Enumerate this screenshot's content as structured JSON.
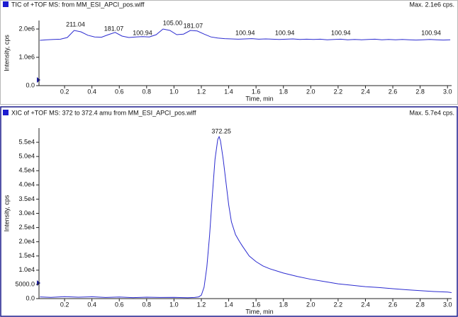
{
  "chart_data": [
    {
      "type": "line",
      "title": "TIC of +TOF MS: from MM_ESI_APCI_pos.wiff",
      "subtitle": "Max. 2.1e6 cps.",
      "x_label": "Time, min",
      "y_label": "Intensity, cps",
      "color": "#2b2bd0",
      "xlim": [
        0.013,
        3.03
      ],
      "ylim": [
        0,
        2300000
      ],
      "xticks": [
        0.2,
        0.4,
        0.6,
        0.8,
        {
          "value": 1,
          "label": "1.0"
        },
        1.2,
        1.4,
        1.6,
        1.8,
        {
          "value": 2,
          "label": "2.0"
        },
        2.2,
        2.4,
        2.6,
        2.8,
        {
          "value": 3,
          "label": "3.0"
        }
      ],
      "yticks": [
        {
          "value": 0,
          "label": "0.0"
        },
        {
          "value": 1000000,
          "label": "1.0e6"
        },
        {
          "value": 2000000,
          "label": "2.0e6"
        }
      ],
      "x": [
        0.02,
        0.07,
        0.12,
        0.17,
        0.22,
        0.27,
        0.32,
        0.37,
        0.42,
        0.47,
        0.52,
        0.57,
        0.62,
        0.67,
        0.72,
        0.77,
        0.82,
        0.87,
        0.92,
        0.97,
        1.02,
        1.07,
        1.12,
        1.17,
        1.22,
        1.27,
        1.32,
        1.37,
        1.42,
        1.47,
        1.52,
        1.57,
        1.62,
        1.67,
        1.72,
        1.77,
        1.82,
        1.87,
        1.92,
        1.97,
        2.02,
        2.07,
        2.12,
        2.17,
        2.22,
        2.27,
        2.32,
        2.37,
        2.42,
        2.47,
        2.52,
        2.57,
        2.62,
        2.67,
        2.72,
        2.77,
        2.82,
        2.87,
        2.92,
        2.97,
        3.02
      ],
      "values": [
        1600000,
        1620000,
        1630000,
        1640000,
        1700000,
        1950000,
        1900000,
        1780000,
        1720000,
        1710000,
        1800000,
        1880000,
        1750000,
        1700000,
        1720000,
        1730000,
        1720000,
        1800000,
        2000000,
        1950000,
        1800000,
        1820000,
        1950000,
        1930000,
        1820000,
        1720000,
        1680000,
        1660000,
        1650000,
        1640000,
        1650000,
        1660000,
        1640000,
        1650000,
        1640000,
        1630000,
        1640000,
        1650000,
        1630000,
        1640000,
        1630000,
        1640000,
        1620000,
        1630000,
        1640000,
        1620000,
        1630000,
        1620000,
        1630000,
        1640000,
        1620000,
        1630000,
        1620000,
        1630000,
        1620000,
        1610000,
        1620000,
        1630000,
        1620000,
        1610000,
        1620000
      ],
      "annotations": [
        {
          "x": 0.28,
          "y": 2150000,
          "text": "211.04"
        },
        {
          "x": 0.56,
          "y": 2000000,
          "text": "181.07"
        },
        {
          "x": 0.77,
          "y": 1850000,
          "text": "100.94"
        },
        {
          "x": 0.99,
          "y": 2200000,
          "text": "105.00"
        },
        {
          "x": 1.14,
          "y": 2100000,
          "text": "181.07"
        },
        {
          "x": 1.52,
          "y": 1850000,
          "text": "100.94"
        },
        {
          "x": 1.81,
          "y": 1850000,
          "text": "100.94"
        },
        {
          "x": 2.22,
          "y": 1850000,
          "text": "100.94"
        },
        {
          "x": 2.88,
          "y": 1850000,
          "text": "100.94"
        }
      ]
    },
    {
      "type": "line",
      "title": "XIC of +TOF MS: 372 to 372.4 amu from MM_ESI_APCI_pos.wiff",
      "subtitle": "Max. 5.7e4 cps.",
      "x_label": "Time, min",
      "y_label": "Intensity, cps",
      "color": "#2b2bd0",
      "xlim": [
        0.013,
        3.03
      ],
      "ylim": [
        0,
        60000
      ],
      "xticks": [
        0.2,
        0.4,
        0.6,
        0.8,
        {
          "value": 1,
          "label": "1.0"
        },
        1.2,
        1.4,
        1.6,
        1.8,
        {
          "value": 2,
          "label": "2.0"
        },
        2.2,
        2.4,
        2.6,
        2.8,
        {
          "value": 3,
          "label": "3.0"
        }
      ],
      "yticks": [
        {
          "value": 0,
          "label": "0.0"
        },
        {
          "value": 5000,
          "label": "5000.0"
        },
        {
          "value": 10000,
          "label": "1.0e4"
        },
        {
          "value": 15000,
          "label": "1.5e4"
        },
        {
          "value": 20000,
          "label": "2.0e4"
        },
        {
          "value": 25000,
          "label": "2.5e4"
        },
        {
          "value": 30000,
          "label": "3.0e4"
        },
        {
          "value": 35000,
          "label": "3.5e4"
        },
        {
          "value": 40000,
          "label": "4.0e4"
        },
        {
          "value": 45000,
          "label": "4.5e4"
        },
        {
          "value": 50000,
          "label": "5.0e4"
        },
        {
          "value": 55000,
          "label": "5.5e4"
        }
      ],
      "x": [
        0.02,
        0.1,
        0.2,
        0.3,
        0.4,
        0.5,
        0.6,
        0.7,
        0.8,
        0.9,
        1.0,
        1.1,
        1.15,
        1.18,
        1.2,
        1.22,
        1.24,
        1.26,
        1.28,
        1.3,
        1.32,
        1.33,
        1.34,
        1.36,
        1.38,
        1.4,
        1.42,
        1.45,
        1.48,
        1.5,
        1.55,
        1.6,
        1.65,
        1.7,
        1.8,
        1.9,
        2.0,
        2.1,
        2.2,
        2.3,
        2.4,
        2.5,
        2.6,
        2.7,
        2.8,
        2.9,
        3.0,
        3.03
      ],
      "values": [
        600,
        450,
        700,
        500,
        650,
        400,
        550,
        350,
        500,
        400,
        450,
        300,
        400,
        600,
        1200,
        4000,
        11000,
        22000,
        36000,
        49000,
        56000,
        57000,
        55500,
        49000,
        41000,
        33000,
        27000,
        22500,
        20000,
        18500,
        15000,
        13000,
        11500,
        10500,
        9000,
        7800,
        6800,
        6000,
        5200,
        4700,
        4200,
        3900,
        3500,
        3100,
        2800,
        2500,
        2300,
        2100
      ],
      "annotations": [
        {
          "x": 1.346,
          "y": 58700,
          "text": "372.25"
        }
      ]
    }
  ]
}
